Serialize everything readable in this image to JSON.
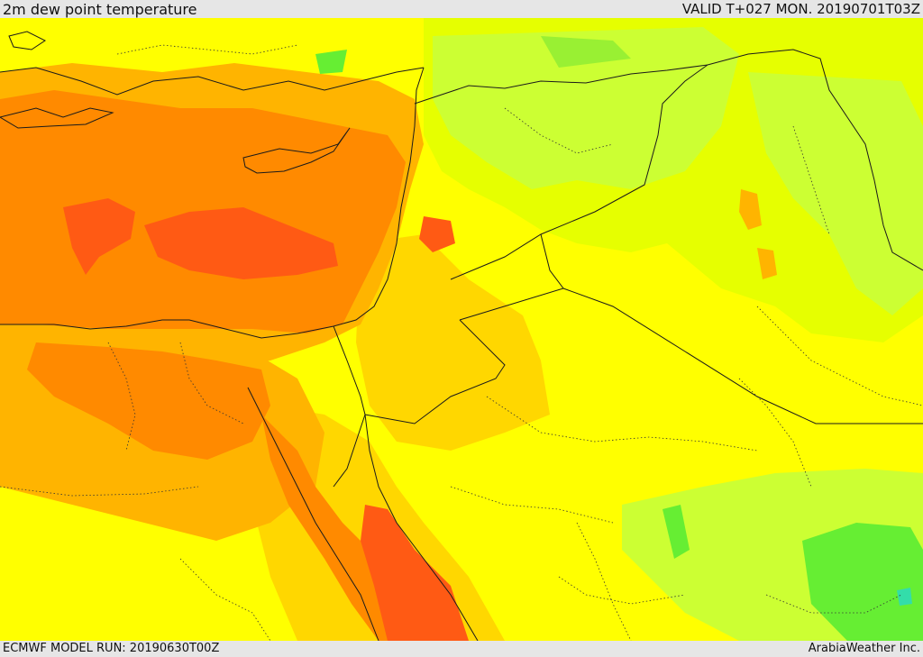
{
  "header": {
    "title": "2m dew point temperature",
    "valid": "VALID T+027 MON. 20190701T03Z"
  },
  "footer": {
    "model_run": "ECMWF MODEL RUN: 20190630T00Z",
    "credit": "ArabiaWeather Inc."
  },
  "colors": {
    "yellow": "#ffff00",
    "yellow_green": "#e6ff00",
    "lime": "#ccff33",
    "green": "#66ee33",
    "cyan": "#33ddaa",
    "gold": "#ffd700",
    "amber": "#ffb400",
    "orange": "#ff8a00",
    "red_orange": "#ff5a14",
    "border": "#1a1a1a"
  }
}
